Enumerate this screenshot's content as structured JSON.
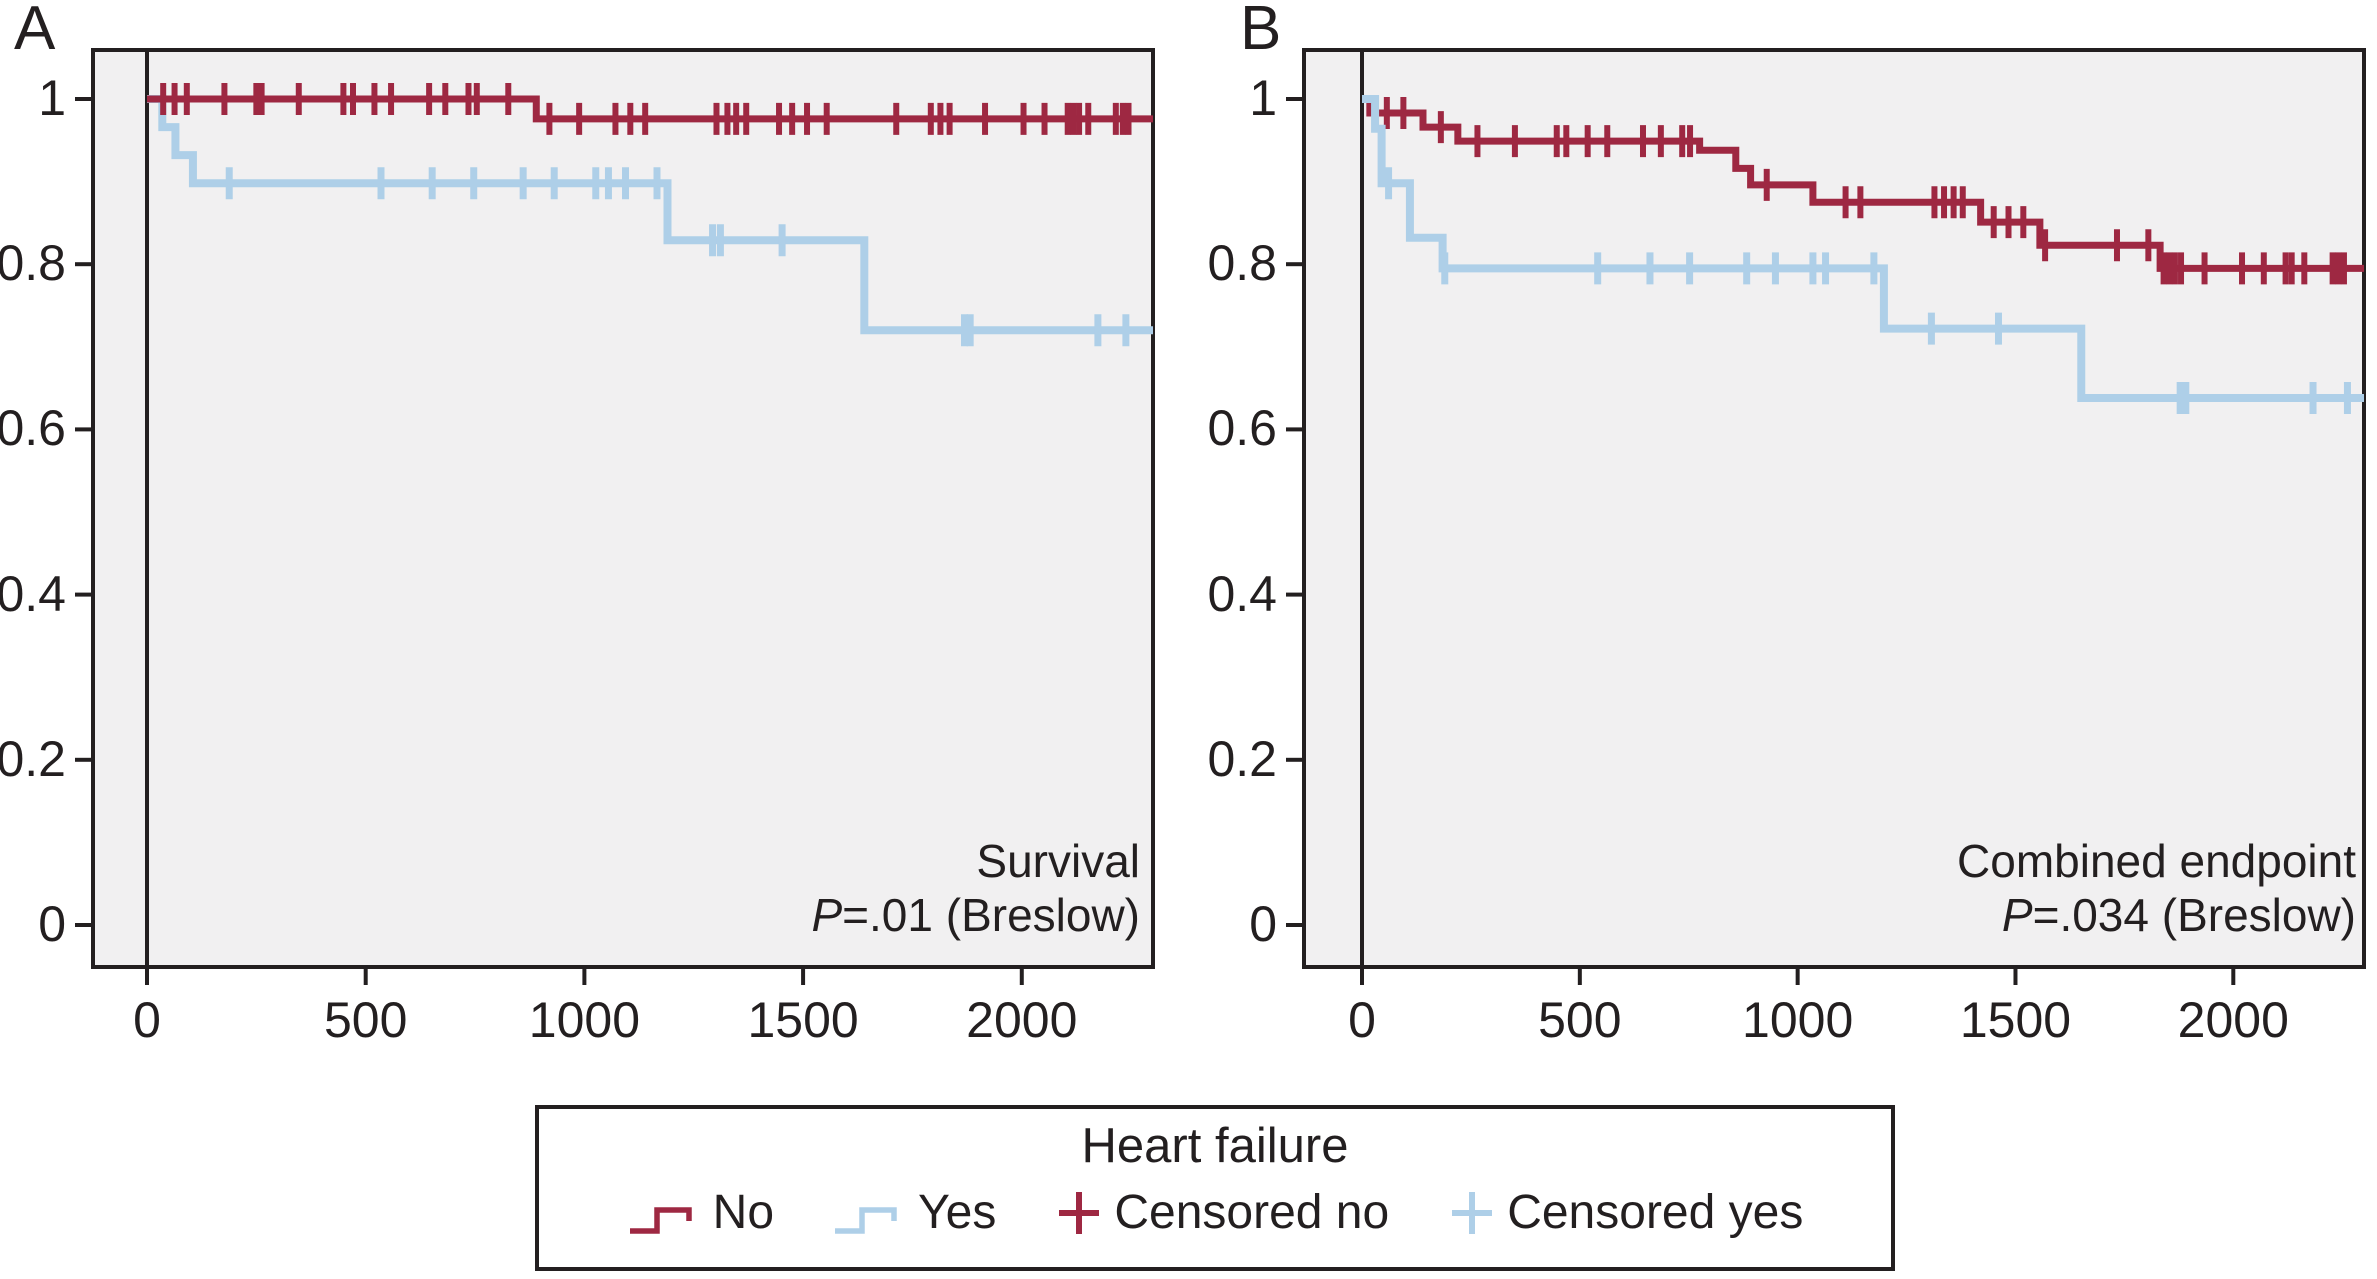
{
  "colors": {
    "no": "#9e2842",
    "yes": "#aecfe8",
    "frame": "#231f20",
    "text": "#231f20",
    "plot_bg": "#f1f0f1"
  },
  "panels": {
    "a_letter": "A",
    "b_letter": "B"
  },
  "legend": {
    "title": "Heart failure",
    "items": [
      {
        "label": "No",
        "swatch": "step-line",
        "color_key": "no"
      },
      {
        "label": "Yes",
        "swatch": "step-line",
        "color_key": "yes"
      },
      {
        "label": "Censored no",
        "swatch": "plus",
        "color_key": "no"
      },
      {
        "label": "Censored yes",
        "swatch": "plus",
        "color_key": "yes"
      }
    ]
  },
  "chart_data": [
    {
      "type": "line",
      "subtype": "kaplan-meier-step",
      "panel_label": "A",
      "annotation_line1": "Survival",
      "annotation_p_italic": "P",
      "annotation_p_rest": "=.01 (Breslow)",
      "x_ticks": [
        "0",
        "500",
        "1000",
        "1500",
        "2000"
      ],
      "x_tick_values": [
        0,
        500,
        1000,
        1500,
        2000
      ],
      "y_ticks": [
        "1",
        "0.8",
        "0.6",
        "0.4",
        "0.2",
        "0"
      ],
      "y_tick_values": [
        1,
        0.8,
        0.6,
        0.4,
        0.2,
        0
      ],
      "xlim": [
        0,
        2300
      ],
      "ylim": [
        0,
        1
      ],
      "grid": false,
      "series": [
        {
          "name": "Yes",
          "color_key": "yes",
          "line_width": 8,
          "censor_width": 7,
          "steps": [
            [
              0,
              1
            ],
            [
              35,
              0.966
            ],
            [
              65,
              0.932
            ],
            [
              105,
              0.898
            ],
            [
              1190,
              0.829
            ],
            [
              1640,
              0.72
            ]
          ],
          "censor_x": [
            188,
            535,
            652,
            747,
            860,
            931,
            1026,
            1055,
            1094,
            1166,
            1293,
            1311,
            1452,
            1869,
            1882,
            2174,
            2238
          ]
        },
        {
          "name": "No",
          "color_key": "no",
          "line_width": 7,
          "censor_width": 6,
          "steps": [
            [
              0,
              1
            ],
            [
              890,
              0.976
            ]
          ],
          "censor_x": [
            37,
            63,
            91,
            177,
            250,
            262,
            347,
            449,
            471,
            520,
            558,
            645,
            682,
            735,
            754,
            826,
            920,
            988,
            1071,
            1105,
            1139,
            1302,
            1327,
            1347,
            1370,
            1445,
            1475,
            1509,
            1554,
            1713,
            1792,
            1814,
            1835,
            1916,
            2004,
            2052,
            2105,
            2118,
            2131,
            2152,
            2215,
            2231,
            2244
          ]
        }
      ]
    },
    {
      "type": "line",
      "subtype": "kaplan-meier-step",
      "panel_label": "B",
      "annotation_line1": "Combined endpoint",
      "annotation_p_italic": "P",
      "annotation_p_rest": "=.034 (Breslow)",
      "x_ticks": [
        "0",
        "500",
        "1000",
        "1500",
        "2000"
      ],
      "x_tick_values": [
        0,
        500,
        1000,
        1500,
        2000
      ],
      "y_ticks": [
        "1",
        "0.8",
        "0.6",
        "0.4",
        "0.2",
        "0"
      ],
      "y_tick_values": [
        1,
        0.8,
        0.6,
        0.4,
        0.2,
        0
      ],
      "xlim": [
        0,
        2300
      ],
      "ylim": [
        0,
        1
      ],
      "grid": false,
      "series": [
        {
          "name": "No",
          "color_key": "no",
          "line_width": 7,
          "censor_width": 6,
          "steps": [
            [
              0,
              1
            ],
            [
              18,
              0.983
            ],
            [
              140,
              0.966
            ],
            [
              220,
              0.949
            ],
            [
              775,
              0.938
            ],
            [
              858,
              0.916
            ],
            [
              892,
              0.896
            ],
            [
              1035,
              0.875
            ],
            [
              1420,
              0.851
            ],
            [
              1556,
              0.823
            ],
            [
              1832,
              0.795
            ]
          ],
          "censor_x": [
            57,
            95,
            181,
            265,
            351,
            447,
            469,
            518,
            563,
            645,
            686,
            735,
            753,
            929,
            1110,
            1144,
            1314,
            1336,
            1358,
            1379,
            1450,
            1484,
            1518,
            1568,
            1733,
            1805,
            1840,
            1853,
            1866,
            1880,
            1934,
            2020,
            2070,
            2120,
            2134,
            2163,
            2228,
            2241,
            2254
          ]
        },
        {
          "name": "Yes",
          "color_key": "yes",
          "line_width": 8,
          "censor_width": 7,
          "steps": [
            [
              0,
              1
            ],
            [
              30,
              0.964
            ],
            [
              45,
              0.898
            ],
            [
              110,
              0.832
            ],
            [
              185,
              0.795
            ],
            [
              1198,
              0.722
            ],
            [
              1651,
              0.638
            ]
          ],
          "censor_x": [
            61,
            190,
            541,
            661,
            752,
            883,
            949,
            1035,
            1064,
            1175,
            1307,
            1461,
            1878,
            1891,
            2183,
            2262
          ]
        }
      ]
    }
  ]
}
